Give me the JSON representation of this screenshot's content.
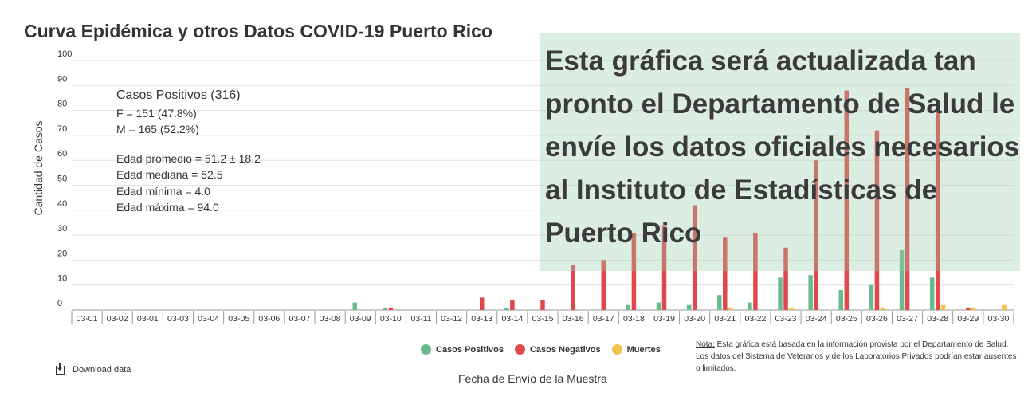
{
  "chart_data": {
    "type": "bar",
    "title": "Curva Epidémica y otros Datos COVID-19 Puerto Rico",
    "xlabel": "Fecha de Envío de la Muestra",
    "ylabel": "Cantidad de Casos",
    "ylim": [
      0,
      100
    ],
    "yticks": [
      0,
      10,
      20,
      30,
      40,
      50,
      60,
      70,
      80,
      90,
      100
    ],
    "grid": true,
    "legend_position": "bottom",
    "categories": [
      "03-01",
      "03-02",
      "03-01",
      "03-03",
      "03-04",
      "03-05",
      "03-06",
      "03-07",
      "03-08",
      "03-09",
      "03-10",
      "03-11",
      "03-12",
      "03-13",
      "03-14",
      "03-15",
      "03-16",
      "03-17",
      "03-18",
      "03-19",
      "03-20",
      "03-21",
      "03-22",
      "03-23",
      "03-24",
      "03-25",
      "03-26",
      "03-27",
      "03-28",
      "03-29",
      "03-30"
    ],
    "series": [
      {
        "name": "Casos Positivos",
        "color": "#6aba8f",
        "values": [
          0,
          0,
          0,
          0,
          0,
          0,
          0,
          0,
          0,
          3,
          1,
          0,
          0,
          0,
          1,
          0,
          0,
          0,
          2,
          3,
          2,
          6,
          3,
          13,
          14,
          8,
          10,
          24,
          13,
          0,
          0
        ]
      },
      {
        "name": "Casos Negativos",
        "color": "#e0484e",
        "values": [
          0,
          0,
          0,
          0,
          0,
          0,
          0,
          0,
          0,
          0,
          1,
          0,
          0,
          5,
          4,
          4,
          18,
          20,
          31,
          34,
          42,
          29,
          31,
          25,
          60,
          88,
          72,
          89,
          81,
          1,
          0
        ]
      },
      {
        "name": "Muertes",
        "color": "#f2c14e",
        "values": [
          0,
          0,
          0,
          0,
          0,
          0,
          0,
          0,
          0,
          0,
          0,
          0,
          0,
          0,
          0,
          0,
          0,
          0,
          0,
          0,
          0,
          1,
          0,
          1,
          0,
          0,
          1,
          0,
          2,
          1,
          2
        ]
      }
    ]
  },
  "stats": {
    "heading": "Casos Positivos (316)",
    "female": "F = 151 (47.8%)",
    "male": "M = 165 (52.2%)",
    "mean_age": "Edad promedio = 51.2 ± 18.2",
    "median_age": "Edad mediana = 52.5",
    "min_age": "Edad mínima = 4.0",
    "max_age": "Edad máxima = 94.0"
  },
  "notice": "Esta gráfica será actualizada tan pronto el Departamento de Salud le envíe los datos oficiales necesarios al Instituto de Estadísticas de Puerto Rico",
  "note": {
    "label": "Nota:",
    "text": " Esta gráfica está basada en la información provista por el Departamento de Salud.  Los datos del Sistema de Veteranos y de los Laboratorios Privados podrían estar ausentes o limitados."
  },
  "download_label": "Download data",
  "icons": {
    "download": "download-icon"
  }
}
